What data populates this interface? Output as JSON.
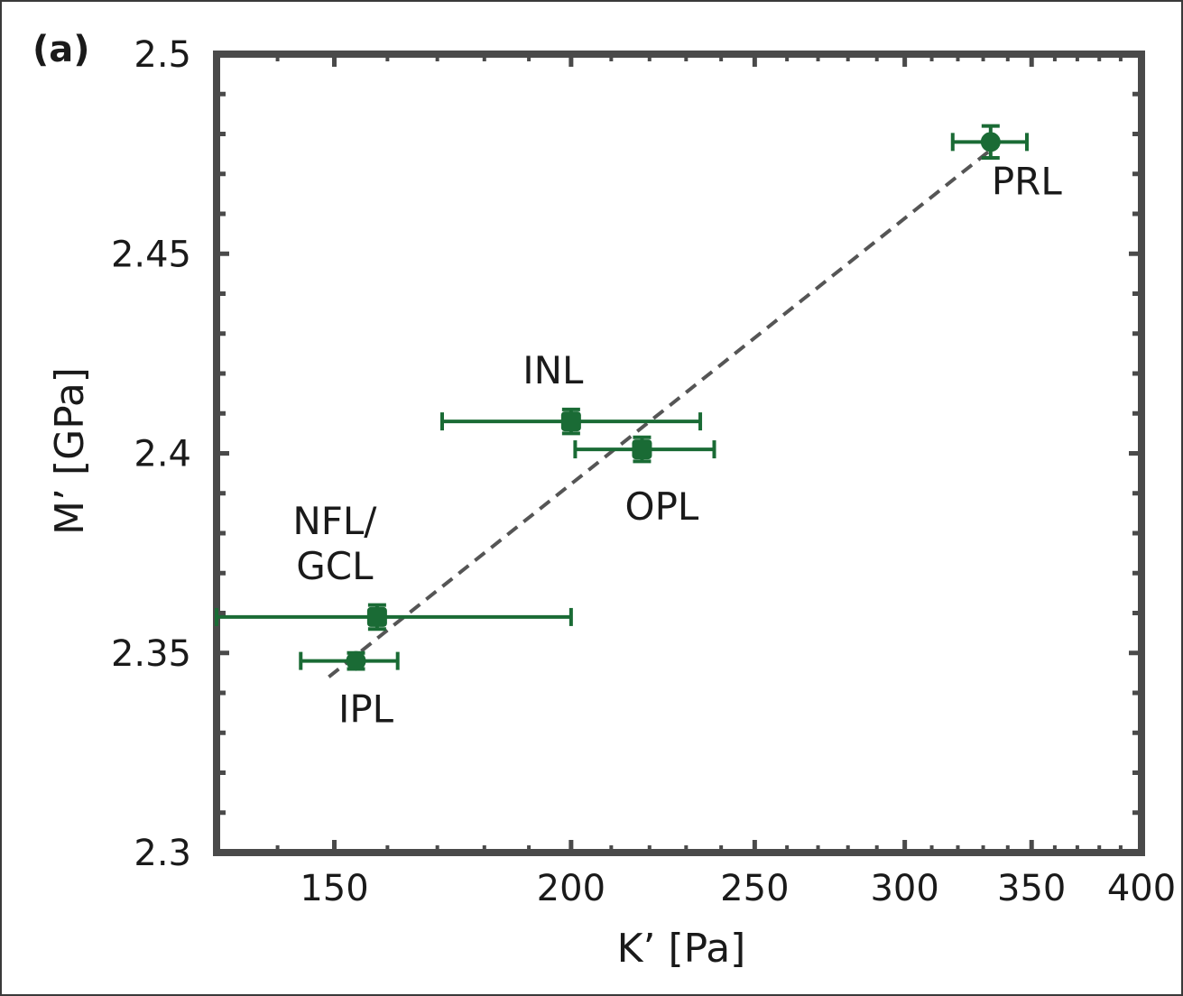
{
  "chart_data": {
    "type": "scatter",
    "panel_label": "(a)",
    "xlabel": "K’ [Pa]",
    "ylabel": "M’ [GPa]",
    "xscale": "log",
    "xlim": [
      130,
      400
    ],
    "ylim": [
      2.3,
      2.5
    ],
    "xticks": [
      150,
      200,
      250,
      300,
      350,
      400
    ],
    "yticks": [
      2.3,
      2.35,
      2.4,
      2.45,
      2.5
    ],
    "ytick_labels": [
      "2.3",
      "2.35",
      "2.4",
      "2.45",
      "2.5"
    ],
    "grid": false,
    "marker_color": "#1a6b35",
    "fit_line_color": "#555555",
    "points": [
      {
        "label": "PRL",
        "x": 333,
        "y": 2.478,
        "xerr": [
          318,
          348
        ],
        "yerr": 0.004,
        "marker": "circle"
      },
      {
        "label": "INL",
        "x": 200,
        "y": 2.408,
        "xerr": [
          171,
          234
        ],
        "yerr": 0.003,
        "marker": "square"
      },
      {
        "label": "OPL",
        "x": 218,
        "y": 2.401,
        "xerr": [
          201,
          238
        ],
        "yerr": 0.003,
        "marker": "square"
      },
      {
        "label": "NFL/\nGCL",
        "x": 158,
        "y": 2.359,
        "xerr": [
          130,
          200
        ],
        "yerr": 0.003,
        "marker": "square"
      },
      {
        "label": "IPL",
        "x": 154,
        "y": 2.348,
        "xerr": [
          144,
          162
        ],
        "yerr": 0.002,
        "marker": "circle"
      }
    ],
    "fit_line": {
      "style": "dashed",
      "from": [
        149,
        2.344
      ],
      "to": [
        333,
        2.476
      ]
    }
  }
}
